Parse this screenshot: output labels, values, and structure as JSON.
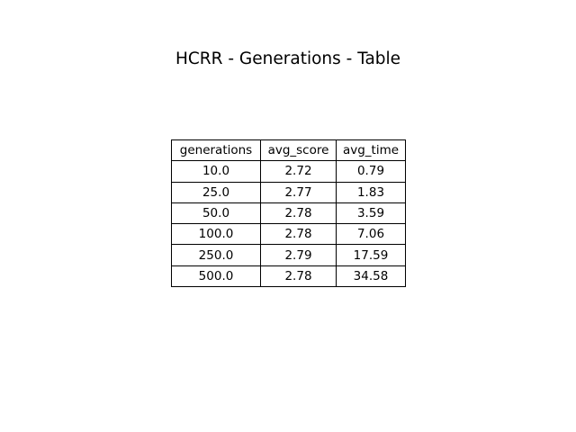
{
  "chart_data": {
    "type": "table",
    "title": "HCRR - Generations - Table",
    "columns": [
      "generations",
      "avg_score",
      "avg_time"
    ],
    "rows": [
      [
        "10.0",
        "2.72",
        "0.79"
      ],
      [
        "25.0",
        "2.77",
        "1.83"
      ],
      [
        "50.0",
        "2.78",
        "3.59"
      ],
      [
        "100.0",
        "2.78",
        "7.06"
      ],
      [
        "250.0",
        "2.79",
        "17.59"
      ],
      [
        "500.0",
        "2.78",
        "34.58"
      ]
    ]
  }
}
